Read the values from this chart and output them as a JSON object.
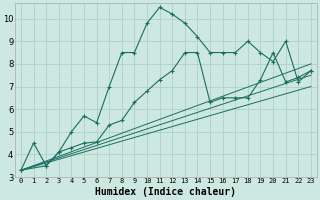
{
  "xlabel": "Humidex (Indice chaleur)",
  "background_color": "#cce8e0",
  "grid_color": "#b0d0c8",
  "line_color": "#1a6e60",
  "xlim": [
    -0.5,
    23.5
  ],
  "ylim": [
    3,
    10.7
  ],
  "yticks": [
    3,
    4,
    5,
    6,
    7,
    8,
    9,
    10
  ],
  "xticks": [
    0,
    1,
    2,
    3,
    4,
    5,
    6,
    7,
    8,
    9,
    10,
    11,
    12,
    13,
    14,
    15,
    16,
    17,
    18,
    19,
    20,
    21,
    22,
    23
  ],
  "curve1_x": [
    0,
    1,
    2,
    3,
    4,
    5,
    6,
    7,
    8,
    9,
    10,
    11,
    12,
    13,
    14,
    15,
    16,
    17,
    18,
    19,
    20,
    21,
    22,
    23
  ],
  "curve1_y": [
    3.3,
    4.5,
    3.5,
    4.1,
    5.0,
    5.7,
    5.4,
    7.0,
    8.5,
    8.5,
    9.8,
    10.5,
    10.2,
    9.8,
    9.2,
    8.5,
    8.5,
    8.5,
    9.0,
    8.5,
    8.1,
    9.0,
    7.2,
    7.7
  ],
  "curve2_x": [
    0,
    2,
    3,
    4,
    5,
    6,
    7,
    8,
    9,
    10,
    11,
    12,
    13,
    14,
    15,
    16,
    17,
    18,
    19,
    20,
    21,
    22,
    23
  ],
  "curve2_y": [
    3.3,
    3.5,
    4.1,
    4.3,
    4.5,
    4.55,
    5.3,
    5.5,
    6.3,
    6.8,
    7.3,
    7.7,
    8.5,
    8.5,
    6.3,
    6.5,
    6.5,
    6.5,
    7.3,
    8.5,
    7.2,
    7.4,
    7.7
  ],
  "line1_x": [
    0,
    23
  ],
  "line1_y": [
    3.3,
    7.5
  ],
  "line2_x": [
    0,
    23
  ],
  "line2_y": [
    3.3,
    8.0
  ],
  "line3_x": [
    0,
    23
  ],
  "line3_y": [
    3.3,
    7.0
  ]
}
